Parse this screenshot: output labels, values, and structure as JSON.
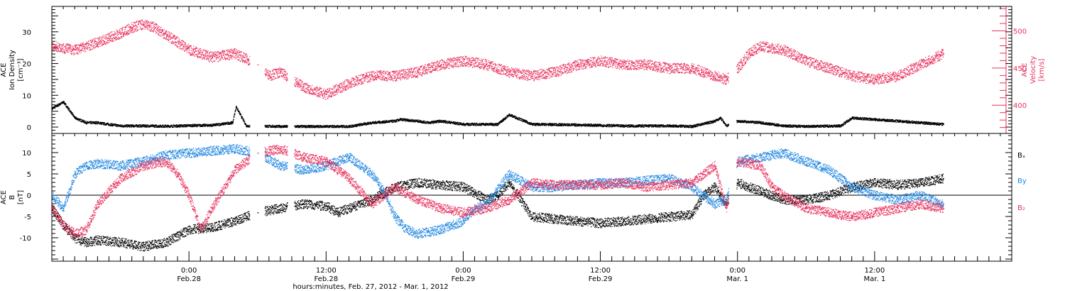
{
  "footer_label": "hours:minutes, Feb. 27, 2012 - Mar. 1, 2012",
  "colors": {
    "black": "#000000",
    "magenta": "#e8305c",
    "blue": "#1f86e0"
  },
  "time_ticks": [
    {
      "h": 6,
      "time": "0:00",
      "date": "Feb.28"
    },
    {
      "h": 18,
      "time": "12:00",
      "date": "Feb.28"
    },
    {
      "h": 30,
      "time": "0:00",
      "date": "Feb.29"
    },
    {
      "h": 42,
      "time": "12:00",
      "date": "Feb.29"
    },
    {
      "h": 54,
      "time": "0:00",
      "date": "Mar. 1"
    },
    {
      "h": 66,
      "time": "12:00",
      "date": "Mar. 1"
    }
  ],
  "chart_data": [
    {
      "type": "scatter",
      "panel": "top",
      "ylabel": [
        "ACE",
        "Ion Density",
        "[cm⁻³]"
      ],
      "y2label": [
        "ACE",
        "Velocity",
        "[km/s]"
      ],
      "xlim_hours": [
        -6,
        78
      ],
      "ylim": [
        -2,
        38
      ],
      "y2lim": [
        362,
        533
      ],
      "yticks": [
        "0",
        "10",
        "20",
        "30"
      ],
      "y2ticks": [
        "400",
        "450",
        "500"
      ],
      "series": [
        {
          "color": "black",
          "axis": "left",
          "x": [
            -6,
            -5,
            -4,
            -3,
            -2,
            -1.5,
            0,
            2,
            4,
            6,
            8,
            9.8,
            10.1,
            11,
            14,
            16,
            20,
            22,
            24,
            24.5,
            26,
            27,
            28,
            30,
            33,
            34,
            36,
            40,
            44,
            48,
            50,
            52,
            52.5,
            53,
            54,
            56,
            58,
            60,
            63,
            64,
            66,
            68,
            70,
            72
          ],
          "y": [
            6,
            8,
            3,
            1.5,
            1.5,
            1.2,
            0.5,
            0.5,
            0.4,
            0.6,
            0.7,
            1.5,
            6.5,
            0.5,
            0.3,
            0.3,
            0.3,
            1.5,
            2,
            2.5,
            2,
            1.5,
            2,
            1,
            1,
            4,
            1,
            0.8,
            0.5,
            0.5,
            0.3,
            2,
            3,
            0.5,
            2,
            1.5,
            0.5,
            0.3,
            0.5,
            3,
            2.5,
            2,
            1.5,
            1
          ]
        },
        {
          "color": "magenta",
          "axis": "right",
          "x": [
            -6,
            -4,
            -2,
            0,
            1,
            2,
            3,
            4,
            6,
            8,
            10,
            12,
            13,
            14,
            16,
            18,
            20,
            22,
            24,
            26,
            28,
            30,
            32,
            34,
            36,
            38,
            40,
            42,
            44,
            46,
            48,
            50,
            51,
            52,
            53,
            54,
            55,
            56,
            58,
            60,
            62,
            64,
            66,
            68,
            70,
            72
          ],
          "y": [
            480,
            475,
            485,
            497,
            505,
            510,
            505,
            495,
            475,
            465,
            470,
            455,
            440,
            445,
            425,
            415,
            430,
            440,
            440,
            445,
            455,
            460,
            455,
            445,
            440,
            445,
            455,
            460,
            455,
            455,
            450,
            450,
            445,
            440,
            435,
            450,
            470,
            480,
            475,
            460,
            450,
            440,
            435,
            440,
            455,
            470
          ]
        }
      ]
    },
    {
      "type": "scatter",
      "panel": "bottom",
      "ylabel": [
        "ACE",
        "B",
        "[nT]"
      ],
      "xlim_hours": [
        -6,
        78
      ],
      "ylim": [
        -15.5,
        14.5
      ],
      "yticks": [
        "-10",
        "-5",
        "0",
        "5",
        "10"
      ],
      "legend": [
        "Bₓ",
        "By",
        "B₂"
      ],
      "series": [
        {
          "name": "Bₓ",
          "color": "black",
          "x": [
            -6,
            -5,
            -4,
            -3,
            -2,
            0,
            2,
            4,
            6,
            8,
            10,
            12,
            14,
            16,
            18,
            19,
            20,
            22,
            24,
            26,
            28,
            30,
            32,
            33,
            34,
            36,
            38,
            40,
            42,
            44,
            46,
            48,
            50,
            51,
            52,
            53,
            54,
            56,
            58,
            60,
            62,
            64,
            66,
            68,
            70,
            72
          ],
          "y": [
            -3,
            -7,
            -10,
            -11,
            -10.5,
            -11,
            -12,
            -11,
            -8,
            -7.5,
            -6,
            -4,
            -3,
            -2,
            -2.5,
            -4,
            -3,
            -1,
            2,
            3,
            2.5,
            2,
            -1,
            0,
            3,
            -5,
            -5.5,
            -6,
            -6.5,
            -6,
            -5.5,
            -5,
            -4.5,
            0,
            2,
            -2,
            3,
            1,
            -1,
            -1,
            0,
            2,
            3,
            2.5,
            3,
            4
          ]
        },
        {
          "name": "By",
          "color": "blue",
          "x": [
            -6,
            -5,
            -4,
            -3,
            -2,
            0,
            2,
            4,
            6,
            8,
            10,
            12,
            14,
            16,
            18,
            19,
            20,
            22,
            23,
            24,
            25,
            26,
            28,
            30,
            31,
            32,
            34,
            36,
            38,
            40,
            42,
            44,
            46,
            48,
            50,
            51,
            52,
            53,
            54,
            56,
            58,
            60,
            62,
            64,
            66,
            68,
            70,
            72
          ],
          "y": [
            0,
            -3,
            5,
            7,
            7.5,
            7,
            8,
            9.5,
            10,
            10.5,
            11,
            10,
            7,
            6,
            7,
            8,
            9,
            5,
            1,
            -5,
            -8,
            -9,
            -8,
            -6,
            -3,
            -2,
            5,
            2,
            2,
            2.5,
            3,
            3,
            3.5,
            4,
            2,
            0,
            -2,
            -1,
            8,
            9,
            10,
            8,
            6,
            2,
            0,
            -1,
            0,
            -2
          ]
        },
        {
          "name": "B₂",
          "color": "magenta",
          "x": [
            -6,
            -5,
            -4,
            -3,
            -2,
            0,
            2,
            4,
            5,
            6,
            7,
            8,
            10,
            12,
            14,
            16,
            18,
            20,
            22,
            24,
            26,
            28,
            30,
            32,
            34,
            36,
            38,
            40,
            42,
            44,
            46,
            48,
            50,
            51,
            52,
            53,
            54,
            56,
            57,
            58,
            60,
            62,
            64,
            66,
            68,
            70,
            72
          ],
          "y": [
            -3,
            -7,
            -9,
            -8,
            -2,
            4,
            7,
            8,
            5,
            0,
            -8,
            -3,
            6,
            10,
            11,
            9,
            8,
            4,
            -2,
            2,
            -1,
            -3,
            -4,
            -3,
            -1,
            3,
            2.5,
            2.5,
            2.5,
            3,
            2,
            2.5,
            3,
            5,
            7,
            -3,
            8,
            7,
            2,
            0,
            -3,
            -4,
            -5,
            -4,
            -3,
            -2,
            -3
          ]
        }
      ]
    }
  ]
}
